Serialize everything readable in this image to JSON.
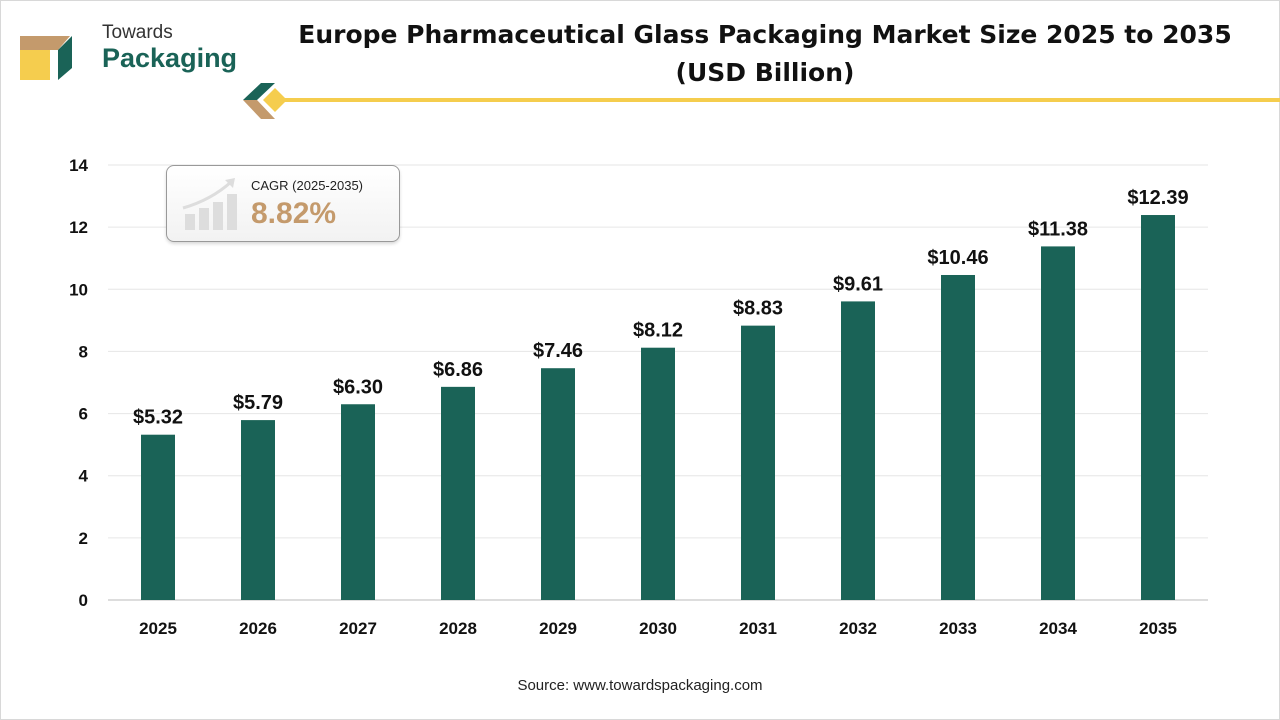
{
  "brand": {
    "line1": "Towards",
    "line2": "Packaging"
  },
  "title_line1": "Europe Pharmaceutical Glass Packaging Market Size 2025 to 2035",
  "title_line2": "(USD Billion)",
  "cagr": {
    "label": "CAGR (2025-2035)",
    "value": "8.82%"
  },
  "source": "Source: www.towardspackaging.com",
  "colors": {
    "bar": "#1a6357",
    "accent_yellow": "#f5cd4e",
    "accent_tan": "#c49a6c",
    "grid": "#e6e6e6"
  },
  "chart_data": {
    "type": "bar",
    "title": "Europe Pharmaceutical Glass Packaging Market Size 2025 to 2035 (USD Billion)",
    "xlabel": "",
    "ylabel": "",
    "categories": [
      "2025",
      "2026",
      "2027",
      "2028",
      "2029",
      "2030",
      "2031",
      "2032",
      "2033",
      "2034",
      "2035"
    ],
    "values": [
      5.32,
      5.79,
      6.3,
      6.86,
      7.46,
      8.12,
      8.83,
      9.61,
      10.46,
      11.38,
      12.39
    ],
    "data_labels": [
      "$5.32",
      "$5.79",
      "$6.30",
      "$6.86",
      "$7.46",
      "$8.12",
      "$8.83",
      "$9.61",
      "$10.46",
      "$11.38",
      "$12.39"
    ],
    "ylim": [
      0,
      14
    ],
    "yticks": [
      0,
      2,
      4,
      6,
      8,
      10,
      12,
      14
    ],
    "grid": true,
    "legend": "none"
  }
}
